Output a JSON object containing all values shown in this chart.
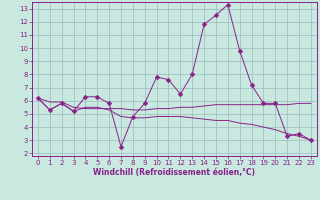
{
  "title": "",
  "xlabel": "Windchill (Refroidissement éolien,°C)",
  "ylabel": "",
  "xlim": [
    -0.5,
    23.5
  ],
  "ylim": [
    1.8,
    13.5
  ],
  "yticks": [
    2,
    3,
    4,
    5,
    6,
    7,
    8,
    9,
    10,
    11,
    12,
    13
  ],
  "xticks": [
    0,
    1,
    2,
    3,
    4,
    5,
    6,
    7,
    8,
    9,
    10,
    11,
    12,
    13,
    14,
    15,
    16,
    17,
    18,
    19,
    20,
    21,
    22,
    23
  ],
  "bg_color": "#c8e8e0",
  "grid_color": "#99bbbb",
  "line_color": "#882288",
  "line1_x": [
    0,
    1,
    2,
    3,
    4,
    5,
    6,
    7,
    8,
    9,
    10,
    11,
    12,
    13,
    14,
    15,
    16,
    17,
    18,
    19,
    20,
    21,
    22,
    23
  ],
  "line1_y": [
    6.2,
    5.3,
    5.8,
    5.2,
    6.3,
    6.3,
    5.8,
    2.5,
    4.8,
    5.8,
    7.8,
    7.6,
    6.5,
    8.0,
    11.8,
    12.5,
    13.3,
    9.8,
    7.2,
    5.8,
    5.8,
    3.3,
    3.5,
    3.0
  ],
  "line2_x": [
    0,
    1,
    2,
    3,
    4,
    5,
    6,
    7,
    8,
    9,
    10,
    11,
    12,
    13,
    14,
    15,
    16,
    17,
    18,
    19,
    20,
    21,
    22,
    23
  ],
  "line2_y": [
    6.2,
    5.9,
    5.9,
    5.5,
    5.4,
    5.4,
    5.4,
    5.4,
    5.3,
    5.3,
    5.4,
    5.4,
    5.5,
    5.5,
    5.6,
    5.7,
    5.7,
    5.7,
    5.7,
    5.7,
    5.7,
    5.7,
    5.8,
    5.8
  ],
  "line3_x": [
    0,
    1,
    2,
    3,
    4,
    5,
    6,
    7,
    8,
    9,
    10,
    11,
    12,
    13,
    14,
    15,
    16,
    17,
    18,
    19,
    20,
    21,
    22,
    23
  ],
  "line3_y": [
    6.2,
    5.3,
    5.8,
    5.2,
    5.5,
    5.5,
    5.3,
    4.8,
    4.7,
    4.7,
    4.8,
    4.8,
    4.8,
    4.7,
    4.6,
    4.5,
    4.5,
    4.3,
    4.2,
    4.0,
    3.8,
    3.5,
    3.3,
    3.0
  ],
  "marker": "D",
  "markersize": 2.5,
  "linewidth": 0.7,
  "tick_fontsize": 5.0,
  "xlabel_fontsize": 5.5
}
